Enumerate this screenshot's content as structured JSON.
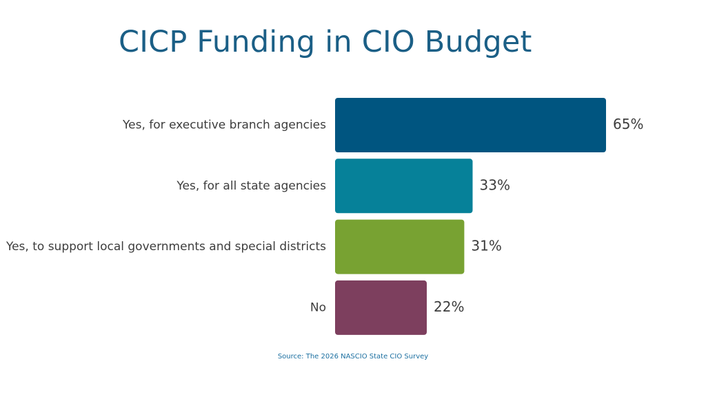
{
  "chart_data": {
    "type": "bar",
    "orientation": "horizontal",
    "title": "CICP Funding in CIO Budget",
    "categories": [
      "Yes, for executive branch agencies",
      "Yes, for all state agencies",
      "Yes, to support local governments and special districts",
      "No"
    ],
    "values": [
      65,
      33,
      31,
      22
    ],
    "value_labels": [
      "65%",
      "33%",
      "31%",
      "22%"
    ],
    "bar_colors": [
      "#005580",
      "#068199",
      "#78a232",
      "#7d3f5e"
    ],
    "xlim": [
      0,
      65
    ],
    "grid": false,
    "legend": "none"
  },
  "source": "Source: The 2026 NASCIO State CIO Survey",
  "colors": {
    "title": "#1b5f86",
    "source": "#1b6fa0",
    "label_text": "#3d3d3d"
  }
}
